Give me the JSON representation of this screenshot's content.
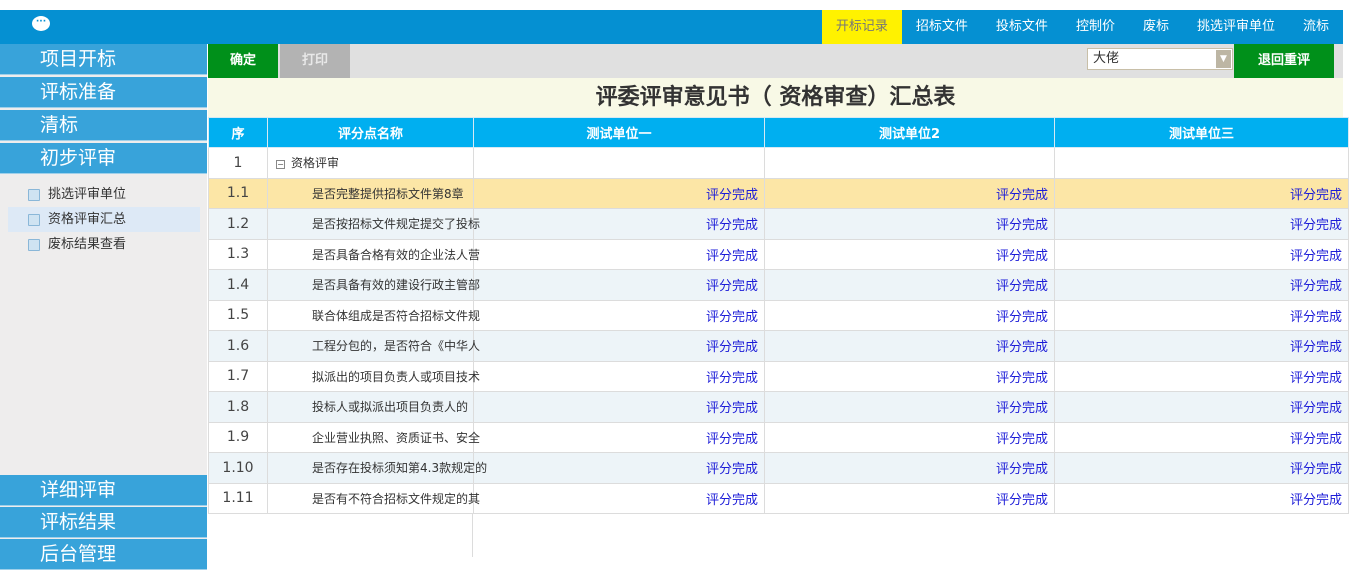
{
  "header": {
    "icon": "chat-bubble-icon",
    "nav": [
      "开标记录",
      "招标文件",
      "投标文件",
      "控制价",
      "废标",
      "挑选评审单位",
      "流标"
    ],
    "active_nav": 0
  },
  "sidebar": {
    "menu_top": [
      "项目开标",
      "评标准备",
      "清标",
      "初步评审"
    ],
    "sub_items": [
      "挑选评审单位",
      "资格评审汇总",
      "废标结果查看"
    ],
    "selected_sub": 1,
    "menu_bottom": [
      "详细评审",
      "评标结果",
      "后台管理"
    ]
  },
  "toolbar": {
    "confirm": "确定",
    "print": "打印",
    "expert_select": "大佬",
    "return": "退回重评"
  },
  "title": "评委评审意见书（ 资格审查）汇总表",
  "table": {
    "headers": [
      "序",
      "评分点名称",
      "测试单位一",
      "测试单位2",
      "测试单位三"
    ],
    "group": {
      "no": "1",
      "name": "资格评审"
    },
    "rows": [
      {
        "no": "1.1",
        "name": "是否完整提供招标文件第8章",
        "status": [
          "评分完成",
          "评分完成",
          "评分完成"
        ]
      },
      {
        "no": "1.2",
        "name": "是否按招标文件规定提交了投标",
        "status": [
          "评分完成",
          "评分完成",
          "评分完成"
        ]
      },
      {
        "no": "1.3",
        "name": "是否具备合格有效的企业法人营",
        "status": [
          "评分完成",
          "评分完成",
          "评分完成"
        ]
      },
      {
        "no": "1.4",
        "name": "是否具备有效的建设行政主管部",
        "status": [
          "评分完成",
          "评分完成",
          "评分完成"
        ]
      },
      {
        "no": "1.5",
        "name": "联合体组成是否符合招标文件规",
        "status": [
          "评分完成",
          "评分完成",
          "评分完成"
        ]
      },
      {
        "no": "1.6",
        "name": "工程分包的，是否符合《中华人",
        "status": [
          "评分完成",
          "评分完成",
          "评分完成"
        ]
      },
      {
        "no": "1.7",
        "name": "拟派出的项目负责人或项目技术",
        "status": [
          "评分完成",
          "评分完成",
          "评分完成"
        ]
      },
      {
        "no": "1.8",
        "name": "投标人或拟派出项目负责人的",
        "status": [
          "评分完成",
          "评分完成",
          "评分完成"
        ]
      },
      {
        "no": "1.9",
        "name": "企业营业执照、资质证书、安全",
        "status": [
          "评分完成",
          "评分完成",
          "评分完成"
        ]
      },
      {
        "no": "1.10",
        "name": "是否存在投标须知第4.3款规定的",
        "status": [
          "评分完成",
          "评分完成",
          "评分完成"
        ]
      },
      {
        "no": "1.11",
        "name": "是否有不符合招标文件规定的其",
        "status": [
          "评分完成",
          "评分完成",
          "评分完成"
        ]
      }
    ]
  },
  "colors": {
    "header": "#0590d2",
    "active_nav": "#fff200",
    "sidebar": "#38a3da",
    "table_header": "#00aff0",
    "green": "#00901a",
    "status": "#1c1cd8",
    "highlight": "#fce6a6"
  }
}
